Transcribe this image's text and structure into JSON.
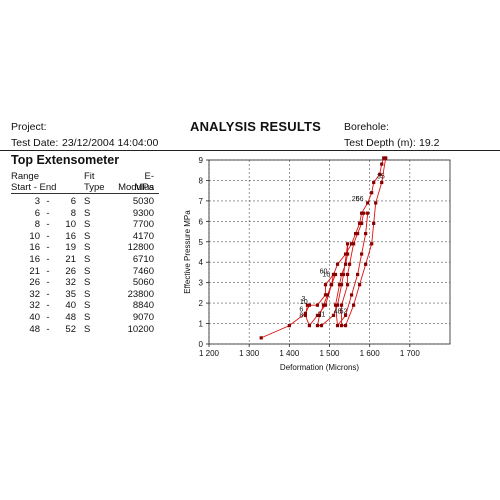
{
  "header": {
    "project_label": "Project:",
    "test_date_label": "Test Date:",
    "test_date_value": "23/12/2004 14:04:00",
    "title": "ANALYSIS RESULTS",
    "borehole_label": "Borehole:",
    "test_depth_label": "Test Depth (m):",
    "test_depth_value": "19.2"
  },
  "table": {
    "title": "Top Extensometer",
    "col_range": "Range",
    "col_range_sub": "Start - End",
    "col_fit": "Fit",
    "col_fit_sub": "Type",
    "col_mod": "E-Modulus",
    "col_mod_sub": "MPa",
    "rows": [
      {
        "start": "3",
        "end": "6",
        "fit": "S",
        "mod": "5030"
      },
      {
        "start": "6",
        "end": "8",
        "fit": "S",
        "mod": "9300"
      },
      {
        "start": "8",
        "end": "10",
        "fit": "S",
        "mod": "7700"
      },
      {
        "start": "10",
        "end": "16",
        "fit": "S",
        "mod": "4170"
      },
      {
        "start": "16",
        "end": "19",
        "fit": "S",
        "mod": "12800"
      },
      {
        "start": "16",
        "end": "21",
        "fit": "S",
        "mod": "6710"
      },
      {
        "start": "21",
        "end": "26",
        "fit": "S",
        "mod": "7460"
      },
      {
        "start": "26",
        "end": "32",
        "fit": "S",
        "mod": "5060"
      },
      {
        "start": "32",
        "end": "35",
        "fit": "S",
        "mod": "23800"
      },
      {
        "start": "32",
        "end": "40",
        "fit": "S",
        "mod": "8840"
      },
      {
        "start": "40",
        "end": "48",
        "fit": "S",
        "mod": "9070"
      },
      {
        "start": "48",
        "end": "52",
        "fit": "S",
        "mod": "10200"
      }
    ]
  },
  "chart_data": {
    "type": "line",
    "xlabel": "Deformation (Microns)",
    "ylabel": "Effective Pressure MPa",
    "xlim": [
      1200,
      1800
    ],
    "ylim": [
      0,
      9
    ],
    "x_ticks": [
      1200,
      1300,
      1400,
      1500,
      1600,
      1700
    ],
    "x_tick_labels": [
      "1 200",
      "1 300",
      "1 400",
      "1 500",
      "1 600",
      "1 700"
    ],
    "y_ticks": [
      0,
      1,
      2,
      3,
      4,
      5,
      6,
      7,
      8,
      9
    ],
    "y_tick_labels": [
      "0",
      "1",
      "2",
      "3",
      "4",
      "5",
      "6",
      "7",
      "8",
      "9"
    ],
    "grid": true,
    "line_color": "#e01010",
    "marker_color": "#8a0000",
    "points": [
      [
        1330,
        0.3
      ],
      [
        1400,
        0.9
      ],
      [
        1440,
        1.5
      ],
      [
        1450,
        1.9
      ],
      [
        1470,
        1.9
      ],
      [
        1490,
        2.4
      ],
      [
        1490,
        2.9
      ],
      [
        1510,
        3.4
      ],
      [
        1520,
        3.9
      ],
      [
        1540,
        4.4
      ],
      [
        1555,
        4.9
      ],
      [
        1565,
        5.4
      ],
      [
        1575,
        5.9
      ],
      [
        1580,
        6.4
      ],
      [
        1595,
        6.9
      ],
      [
        1605,
        7.4
      ],
      [
        1610,
        7.9
      ],
      [
        1625,
        8.3
      ],
      [
        1630,
        8.8
      ],
      [
        1635,
        9.1
      ],
      [
        1640,
        9.1
      ],
      [
        1630,
        7.9
      ],
      [
        1615,
        6.9
      ],
      [
        1610,
        5.9
      ],
      [
        1605,
        4.9
      ],
      [
        1590,
        3.9
      ],
      [
        1575,
        2.9
      ],
      [
        1560,
        1.9
      ],
      [
        1540,
        0.9
      ],
      [
        1530,
        0.9
      ],
      [
        1530,
        1.9
      ],
      [
        1545,
        2.9
      ],
      [
        1545,
        3.4
      ],
      [
        1550,
        3.9
      ],
      [
        1560,
        4.9
      ],
      [
        1570,
        5.4
      ],
      [
        1580,
        5.9
      ],
      [
        1585,
        6.4
      ],
      [
        1595,
        6.4
      ],
      [
        1590,
        5.4
      ],
      [
        1580,
        4.4
      ],
      [
        1570,
        3.4
      ],
      [
        1555,
        2.4
      ],
      [
        1540,
        1.4
      ],
      [
        1520,
        0.9
      ],
      [
        1515,
        1.9
      ],
      [
        1525,
        2.9
      ],
      [
        1530,
        3.4
      ],
      [
        1540,
        3.9
      ],
      [
        1545,
        4.4
      ],
      [
        1545,
        4.9
      ],
      [
        1535,
        3.4
      ],
      [
        1530,
        2.9
      ],
      [
        1520,
        1.9
      ],
      [
        1510,
        1.4
      ],
      [
        1480,
        0.9
      ],
      [
        1470,
        0.9
      ],
      [
        1475,
        1.4
      ],
      [
        1485,
        1.9
      ],
      [
        1495,
        2.4
      ],
      [
        1505,
        2.9
      ],
      [
        1510,
        3.4
      ],
      [
        1515,
        3.4
      ],
      [
        1505,
        2.9
      ],
      [
        1490,
        1.9
      ],
      [
        1470,
        1.4
      ],
      [
        1450,
        0.9
      ],
      [
        1440,
        1.4
      ],
      [
        1445,
        1.9
      ]
    ],
    "annotations": [
      {
        "text": "3",
        "x": 1435,
        "y": 2.1
      },
      {
        "text": "6",
        "x": 1430,
        "y": 1.6
      },
      {
        "text": "8",
        "x": 1430,
        "y": 1.3
      },
      {
        "text": "10",
        "x": 1436,
        "y": 1.95
      },
      {
        "text": "21",
        "x": 1480,
        "y": 1.35
      },
      {
        "text": "60",
        "x": 1485,
        "y": 3.45
      },
      {
        "text": "16",
        "x": 1492,
        "y": 3.3
      },
      {
        "text": "48",
        "x": 1520,
        "y": 1.5
      },
      {
        "text": "52",
        "x": 1535,
        "y": 1.5
      },
      {
        "text": "26",
        "x": 1565,
        "y": 7.0
      },
      {
        "text": "56",
        "x": 1575,
        "y": 7.0
      },
      {
        "text": "35",
        "x": 1628,
        "y": 8.1
      }
    ]
  }
}
